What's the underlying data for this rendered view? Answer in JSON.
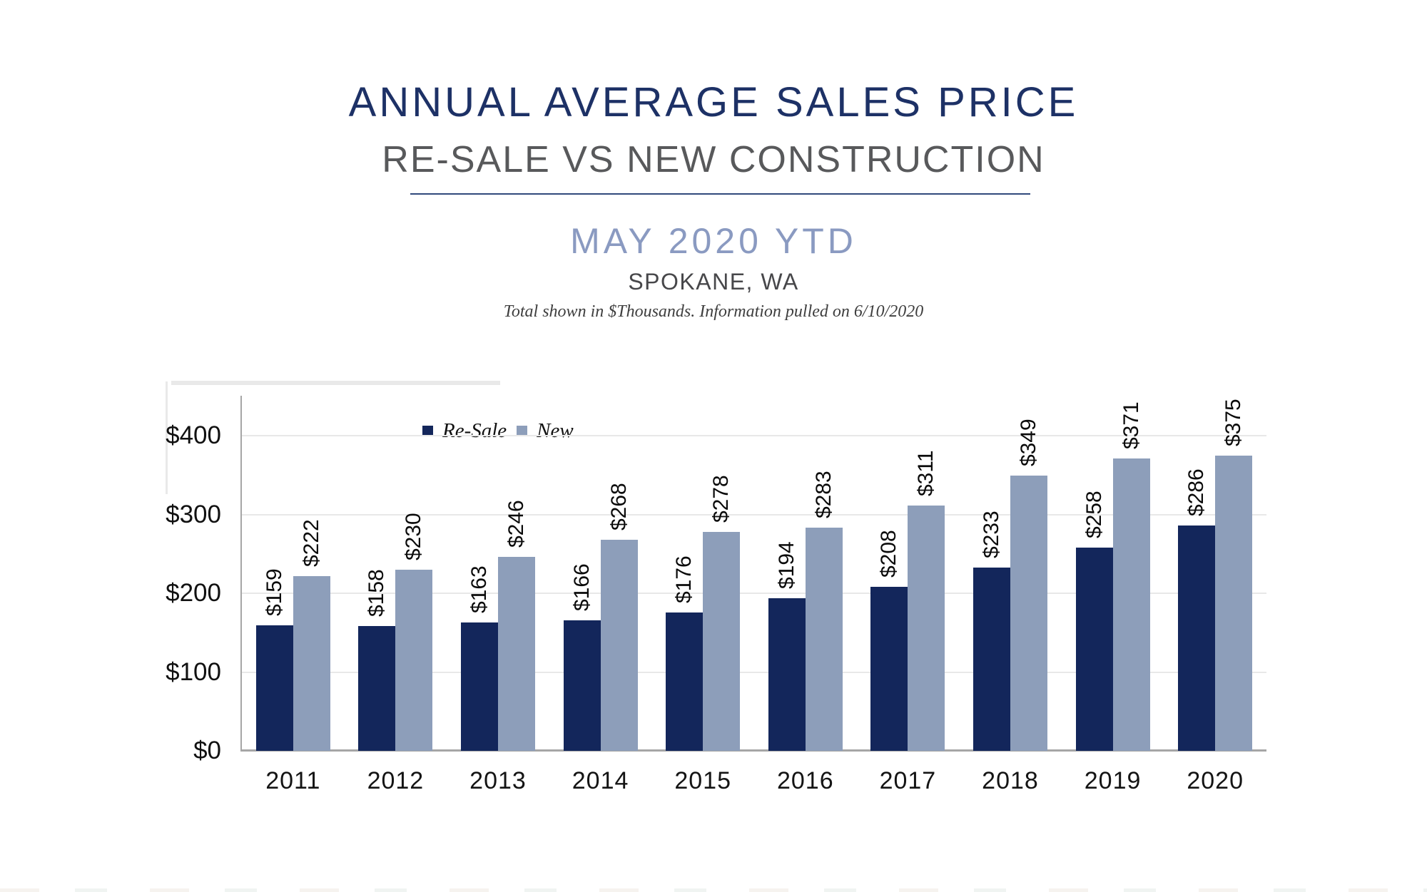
{
  "header": {
    "title": "ANNUAL AVERAGE SALES PRICE",
    "subtitle": "RE-SALE VS NEW CONSTRUCTION",
    "period": "MAY 2020 YTD",
    "location": "SPOKANE, WA",
    "note": "Total shown in $Thousands. Information pulled on 6/10/2020"
  },
  "colors": {
    "title_navy": "#1D3166",
    "subtitle_gray": "#58595B",
    "period_blue": "#8A9AC1",
    "divider_navy": "#30497B",
    "resale_navy": "#13265B",
    "new_gray_blue": "#8D9EBA",
    "axis_gray": "#A6A6A6",
    "gridline_gray": "#E8E8E8"
  },
  "legend": {
    "items": [
      {
        "label": "Re-Sale",
        "color": "#13265B"
      },
      {
        "label": "New",
        "color": "#8D9EBA"
      }
    ]
  },
  "chart_data": {
    "type": "bar",
    "title": "Annual Average Sales Price, Re-Sale vs New Construction, May 2020 YTD, Spokane WA ($Thousands)",
    "categories": [
      "2011",
      "2012",
      "2013",
      "2014",
      "2015",
      "2016",
      "2017",
      "2018",
      "2019",
      "2020"
    ],
    "series": [
      {
        "name": "Re-Sale",
        "color": "#13265B",
        "values": [
          159,
          158,
          163,
          166,
          176,
          194,
          208,
          233,
          258,
          286
        ],
        "labels": [
          "$159",
          "$158",
          "$163",
          "$166",
          "$176",
          "$194",
          "$208",
          "$233",
          "$258",
          "$286"
        ]
      },
      {
        "name": "New",
        "color": "#8D9EBA",
        "values": [
          222,
          230,
          246,
          268,
          278,
          283,
          311,
          349,
          371,
          375
        ],
        "labels": [
          "$222",
          "$230",
          "$246",
          "$268",
          "$278",
          "$283",
          "$311",
          "$349",
          "$371",
          "$375"
        ]
      }
    ],
    "xlabel": "",
    "ylabel": "",
    "ylim": [
      0,
      450
    ],
    "grid": true,
    "legend_position": "inside-top-left-of-plot",
    "y_axis": {
      "ticks": [
        {
          "value": 0,
          "label": "$0"
        },
        {
          "value": 100,
          "label": "$100"
        },
        {
          "value": 200,
          "label": "$200"
        },
        {
          "value": 300,
          "label": "$300"
        },
        {
          "value": 400,
          "label": "$400"
        }
      ]
    }
  }
}
